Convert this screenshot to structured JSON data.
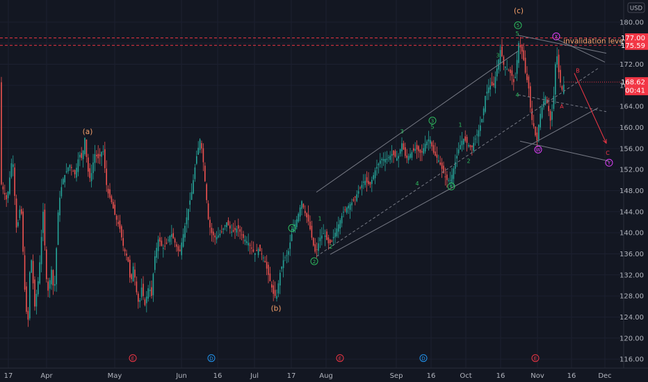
{
  "chart_data": {
    "type": "candlestick",
    "currency": "USD",
    "y_ticks": [
      116,
      120,
      124,
      128,
      132,
      136,
      140,
      144,
      148,
      152,
      156,
      160,
      164,
      168,
      172,
      176,
      180
    ],
    "y_tick_labels": [
      "116.00",
      "120.00",
      "124.00",
      "128.00",
      "132.00",
      "136.00",
      "140.00",
      "144.00",
      "148.00",
      "152.00",
      "156.00",
      "160.00",
      "164.00",
      "168.00",
      "172.00",
      "176.00",
      "180.00"
    ],
    "ylim": [
      114.3,
      184.2
    ],
    "x_ticks": [
      {
        "label": "17",
        "x": 12
      },
      {
        "label": "Apr",
        "x": 67
      },
      {
        "label": "May",
        "x": 165
      },
      {
        "label": "Jun",
        "x": 261
      },
      {
        "label": "16",
        "x": 313
      },
      {
        "label": "Jul",
        "x": 366
      },
      {
        "label": "17",
        "x": 419
      },
      {
        "label": "Aug",
        "x": 469
      },
      {
        "label": "Sep",
        "x": 570
      },
      {
        "label": "16",
        "x": 620
      },
      {
        "label": "Oct",
        "x": 670
      },
      {
        "label": "16",
        "x": 720
      },
      {
        "label": "Nov",
        "x": 773
      },
      {
        "label": "16",
        "x": 822
      },
      {
        "label": "Dec",
        "x": 870
      }
    ],
    "price_path": [
      [
        0,
        150
      ],
      [
        10,
        146
      ],
      [
        18,
        155
      ],
      [
        24,
        140
      ],
      [
        30,
        146
      ],
      [
        36,
        128
      ],
      [
        40,
        122
      ],
      [
        44,
        137
      ],
      [
        50,
        126
      ],
      [
        56,
        132
      ],
      [
        62,
        144
      ],
      [
        68,
        128
      ],
      [
        74,
        133
      ],
      [
        78,
        128
      ],
      [
        84,
        145
      ],
      [
        90,
        150
      ],
      [
        100,
        153
      ],
      [
        108,
        151
      ],
      [
        114,
        155
      ],
      [
        118,
        154
      ],
      [
        122,
        158
      ],
      [
        126,
        152
      ],
      [
        130,
        150
      ],
      [
        136,
        155
      ],
      [
        142,
        154
      ],
      [
        148,
        156
      ],
      [
        154,
        148
      ],
      [
        160,
        146
      ],
      [
        166,
        143
      ],
      [
        172,
        141
      ],
      [
        178,
        137
      ],
      [
        184,
        135
      ],
      [
        188,
        130
      ],
      [
        192,
        134
      ],
      [
        196,
        129
      ],
      [
        200,
        126
      ],
      [
        204,
        130
      ],
      [
        208,
        126
      ],
      [
        214,
        130
      ],
      [
        218,
        128
      ],
      [
        222,
        135
      ],
      [
        228,
        139
      ],
      [
        234,
        137
      ],
      [
        240,
        138
      ],
      [
        246,
        140
      ],
      [
        252,
        138
      ],
      [
        258,
        136
      ],
      [
        264,
        140
      ],
      [
        270,
        144
      ],
      [
        276,
        148
      ],
      [
        282,
        154
      ],
      [
        288,
        158
      ],
      [
        292,
        154
      ],
      [
        296,
        148
      ],
      [
        300,
        142
      ],
      [
        304,
        140
      ],
      [
        310,
        139
      ],
      [
        318,
        140
      ],
      [
        326,
        142
      ],
      [
        334,
        140
      ],
      [
        342,
        141
      ],
      [
        350,
        139
      ],
      [
        358,
        138
      ],
      [
        366,
        136
      ],
      [
        372,
        137
      ],
      [
        380,
        135
      ],
      [
        386,
        132
      ],
      [
        390,
        130
      ],
      [
        394,
        128
      ],
      [
        398,
        128
      ],
      [
        402,
        132
      ],
      [
        408,
        135
      ],
      [
        414,
        136
      ],
      [
        420,
        140
      ],
      [
        428,
        143
      ],
      [
        434,
        146
      ],
      [
        438,
        144
      ],
      [
        444,
        142
      ],
      [
        450,
        138
      ],
      [
        454,
        136
      ],
      [
        460,
        139
      ],
      [
        466,
        140
      ],
      [
        472,
        138
      ],
      [
        476,
        138
      ],
      [
        482,
        140
      ],
      [
        488,
        142
      ],
      [
        494,
        144
      ],
      [
        500,
        145
      ],
      [
        508,
        146
      ],
      [
        516,
        148
      ],
      [
        524,
        150
      ],
      [
        532,
        149
      ],
      [
        540,
        152
      ],
      [
        548,
        154
      ],
      [
        556,
        154
      ],
      [
        564,
        155
      ],
      [
        572,
        154
      ],
      [
        578,
        157
      ],
      [
        584,
        154
      ],
      [
        590,
        155
      ],
      [
        598,
        156
      ],
      [
        606,
        155
      ],
      [
        612,
        157
      ],
      [
        618,
        158
      ],
      [
        624,
        155
      ],
      [
        630,
        154
      ],
      [
        636,
        152
      ],
      [
        642,
        150
      ],
      [
        648,
        150
      ],
      [
        654,
        153
      ],
      [
        660,
        156
      ],
      [
        666,
        158
      ],
      [
        672,
        157
      ],
      [
        678,
        156
      ],
      [
        684,
        158
      ],
      [
        690,
        160
      ],
      [
        694,
        162
      ],
      [
        698,
        166
      ],
      [
        704,
        168
      ],
      [
        710,
        168
      ],
      [
        716,
        172
      ],
      [
        720,
        175
      ],
      [
        724,
        172
      ],
      [
        730,
        171
      ],
      [
        736,
        170
      ],
      [
        740,
        168
      ],
      [
        746,
        176
      ],
      [
        752,
        174
      ],
      [
        756,
        170
      ],
      [
        760,
        168
      ],
      [
        764,
        162
      ],
      [
        768,
        160
      ],
      [
        772,
        157
      ],
      [
        776,
        162
      ],
      [
        780,
        164
      ],
      [
        784,
        166
      ],
      [
        788,
        164
      ],
      [
        792,
        161
      ],
      [
        796,
        165
      ],
      [
        800,
        175
      ],
      [
        804,
        170
      ],
      [
        808,
        167
      ],
      [
        812,
        168.6
      ]
    ],
    "price_lines": [
      {
        "label": "177.00",
        "value": 177.0,
        "color": "#f23645"
      },
      {
        "label": "175.59",
        "value": 175.59,
        "color": "#f23645"
      }
    ],
    "current_price": {
      "label": "168.62",
      "value": 168.62,
      "countdown": "00:41",
      "color": "#f23645"
    },
    "annotations": [
      {
        "text": "(a)",
        "x": 126,
        "y": 159.3,
        "color": "#f7a16a"
      },
      {
        "text": "(b)",
        "x": 397,
        "y": 125.7,
        "color": "#f7a16a"
      },
      {
        "text": "(c)",
        "x": 746,
        "y": 182.2,
        "color": "#f7a16a"
      },
      {
        "text": "invalidation level",
        "x": 855,
        "y": 176.5,
        "color": "#f7a16a"
      }
    ],
    "wave_labels": [
      {
        "text": "3",
        "x": 578,
        "y": 159.3,
        "color": "#2ebd5f"
      },
      {
        "text": "5",
        "x": 622,
        "y": 160.1,
        "color": "#2ebd5f"
      },
      {
        "text": "1",
        "x": 662,
        "y": 160.5,
        "color": "#2ebd5f"
      },
      {
        "text": "3",
        "x": 716,
        "y": 173.7,
        "color": "#2ebd5f"
      },
      {
        "text": "5",
        "x": 744,
        "y": 177.9,
        "color": "#2ebd5f"
      },
      {
        "text": "4",
        "x": 744,
        "y": 166.2,
        "color": "#2ebd5f"
      },
      {
        "text": "4",
        "x": 600,
        "y": 149.4,
        "color": "#2ebd5f"
      },
      {
        "text": "2",
        "x": 674,
        "y": 153.7,
        "color": "#2ebd5f"
      },
      {
        "text": "2",
        "x": 476,
        "y": 137.4,
        "color": "#2ebd5f"
      },
      {
        "text": "1",
        "x": 460,
        "y": 142.7,
        "color": "#2ebd5f"
      },
      {
        "text": "B",
        "x": 831,
        "y": 170.8,
        "color": "#f23645"
      },
      {
        "text": "A",
        "x": 808,
        "y": 164.0,
        "color": "#f23645"
      },
      {
        "text": "C",
        "x": 874,
        "y": 155.2,
        "color": "#f23645"
      }
    ],
    "circled_labels": [
      {
        "text": "1",
        "x": 420,
        "y": 140.9,
        "color": "#2ebd5f"
      },
      {
        "text": "2",
        "x": 452,
        "y": 134.6,
        "color": "#2ebd5f"
      },
      {
        "text": "3",
        "x": 622,
        "y": 161.3,
        "color": "#2ebd5f"
      },
      {
        "text": "4",
        "x": 649,
        "y": 148.8,
        "color": "#2ebd5f"
      },
      {
        "text": "5",
        "x": 745,
        "y": 179.4,
        "color": "#2ebd5f"
      },
      {
        "text": "X",
        "x": 800,
        "y": 177.3,
        "color": "#e040fb"
      },
      {
        "text": "W",
        "x": 774,
        "y": 155.8,
        "color": "#e040fb"
      },
      {
        "text": "Y",
        "x": 876,
        "y": 153.3,
        "color": "#e040fb"
      },
      {
        "text": "E",
        "x": 191,
        "y": 116.2,
        "color": "#f23645"
      },
      {
        "text": "D",
        "x": 304,
        "y": 116.2,
        "color": "#2196f3"
      },
      {
        "text": "E",
        "x": 489,
        "y": 116.2,
        "color": "#f23645"
      },
      {
        "text": "D",
        "x": 609,
        "y": 116.2,
        "color": "#2196f3"
      },
      {
        "text": "E",
        "x": 770,
        "y": 116.2,
        "color": "#f23645"
      }
    ],
    "channel_lines": [
      {
        "from": [
          455,
          147.7
        ],
        "to": [
          745,
          174.5
        ],
        "color": "#787b86",
        "dash": false
      },
      {
        "from": [
          455,
          135.5
        ],
        "to": [
          860,
          171.2
        ],
        "color": "#787b86",
        "dash": true
      },
      {
        "from": [
          475,
          135.9
        ],
        "to": [
          860,
          163.7
        ],
        "color": "#787b86",
        "dash": false
      },
      {
        "from": [
          745,
          177.5
        ],
        "to": [
          872,
          174.1
        ],
        "color": "#787b86",
        "dash": false
      },
      {
        "from": [
          745,
          166.2
        ],
        "to": [
          872,
          163.0
        ],
        "color": "#787b86",
        "dash": true
      },
      {
        "from": [
          748,
          157.4
        ],
        "to": [
          876,
          153.6
        ],
        "color": "#787b86",
        "dash": false
      },
      {
        "from": [
          800,
          176.8
        ],
        "to": [
          870,
          172.4
        ],
        "color": "#787b86",
        "dash": false
      }
    ],
    "forecast_arrows": [
      {
        "from": [
          826,
          170.3
        ],
        "to": [
          872,
          157.0
        ],
        "color": "#f23645"
      }
    ],
    "grid": true,
    "legend": "none"
  }
}
